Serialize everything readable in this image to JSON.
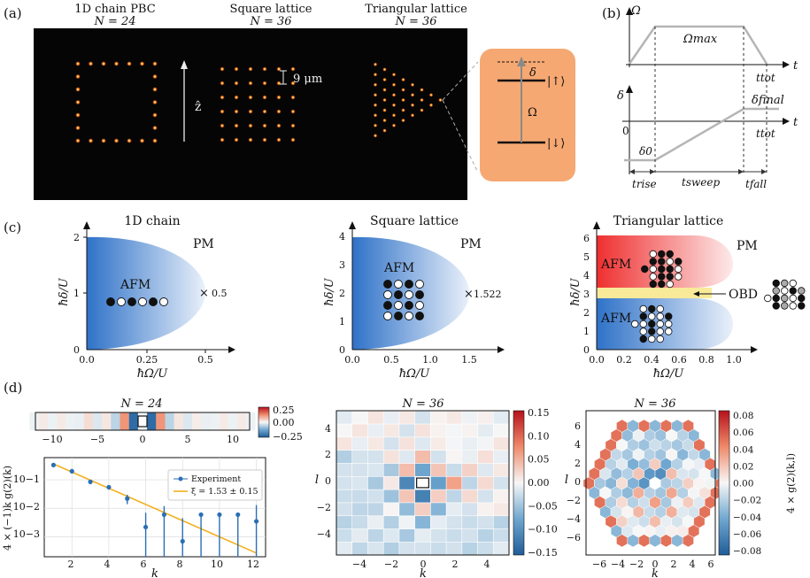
{
  "panels": {
    "a": "(a)",
    "b": "(b)",
    "c": "(c)",
    "d": "(d)"
  },
  "panel_a": {
    "chain_title": "1D chain PBC",
    "chain_n": "N = 24",
    "square_title": "Square lattice",
    "square_n": "N = 36",
    "tri_title": "Triangular lattice",
    "tri_n": "N = 36",
    "z_label": "ẑ",
    "spacing_label": "9 μm",
    "level_up": "|↑⟩",
    "level_down": "|↓⟩",
    "omega": "Ω",
    "delta": "δ",
    "box_color": "#f6a872"
  },
  "panel_b": {
    "omega_axis": "Ω",
    "delta_axis": "δ",
    "t": "t",
    "omega_max": "Ωmax",
    "t_tot": "ttot",
    "delta_final": "δfinal",
    "delta0": "δ0",
    "zero": "0",
    "t_rise": "trise",
    "t_sweep": "tsweep",
    "t_fall": "tfall"
  },
  "panel_c": {
    "chain": {
      "title": "1D chain",
      "pm": "PM",
      "afm": "AFM",
      "crit": "0.5",
      "xlabel": "ħΩ/U",
      "ylabel": "ħδ/U",
      "xticks": [
        "0.0",
        "0.25",
        "0.5"
      ],
      "yticks": [
        "0",
        "1",
        "2"
      ]
    },
    "square": {
      "title": "Square lattice",
      "pm": "PM",
      "afm": "AFM",
      "crit": "1.522",
      "xlabel": "ħΩ/U",
      "ylabel": "ħδ/U",
      "xticks": [
        "0.0",
        "0.5",
        "1.0",
        "1.5"
      ],
      "yticks": [
        "0",
        "1",
        "2",
        "3",
        "4"
      ]
    },
    "tri": {
      "title": "Triangular lattice",
      "pm": "PM",
      "afm_top": "AFM",
      "afm_bottom": "AFM",
      "obd": "OBD",
      "xlabel": "ħΩ/U",
      "ylabel": "ħδ/U",
      "xticks": [
        "0.0",
        "0.2",
        "0.4",
        "0.6",
        "0.8",
        "1.0"
      ],
      "yticks": [
        "0",
        "1",
        "2",
        "3",
        "4",
        "5",
        "6"
      ]
    }
  },
  "panel_d": {
    "chain_title": "N = 24",
    "square_title": "N = 36",
    "tri_title": "N = 36",
    "strip_ticks": [
      "−10",
      "−5",
      "0",
      "5",
      "10"
    ],
    "cb1_ticks": [
      "0.25",
      "0.00",
      "−0.25"
    ],
    "cb2_ticks": [
      "0.15",
      "0.10",
      "0.05",
      "0.00",
      "−0.05",
      "−0.10",
      "−0.15"
    ],
    "cb3_ticks": [
      "0.08",
      "0.06",
      "0.04",
      "0.02",
      "0.00",
      "−0.02",
      "−0.04",
      "−0.06",
      "−0.08"
    ],
    "cb3_label": "4 × g(2)(k,l)",
    "sq_xticks": [
      "−4",
      "−2",
      "0",
      "2",
      "4"
    ],
    "sq_yticks": [
      "4",
      "2",
      "0",
      "−2",
      "−4"
    ],
    "tri_xticks": [
      "−6",
      "−4",
      "−2",
      "0",
      "2",
      "4",
      "6"
    ],
    "tri_yticks": [
      "6",
      "4",
      "2",
      "0",
      "−2",
      "−4",
      "−6"
    ],
    "k": "k",
    "l": "l",
    "log_ylabel": "4 × (−1)k g(2)(k)",
    "log_yticks": [
      "10−1",
      "10−2",
      "10−3"
    ],
    "log_xticks": [
      "2",
      "4",
      "6",
      "8",
      "10",
      "12"
    ],
    "legend_exp": "Experiment",
    "legend_fit": "ξ = 1.53 ± 0.15"
  },
  "chart_data": {
    "type": "scatter",
    "title": "",
    "xlabel": "k",
    "ylabel": "4 × (−1)^k g(2)(k)",
    "yscale": "log",
    "xlim": [
      0.5,
      12.5
    ],
    "ylim": [
      0.0002,
      0.6
    ],
    "series": [
      {
        "name": "Experiment",
        "x": [
          1,
          2,
          3,
          4,
          5,
          6,
          7,
          8,
          9,
          10,
          11,
          12
        ],
        "y": [
          0.33,
          0.2,
          0.085,
          0.055,
          0.022,
          0.0022,
          0.006,
          0.0007,
          0.006,
          0.006,
          0.006,
          0.0035
        ],
        "yerr_low": [
          0.3,
          0.17,
          0.07,
          0.045,
          0.014,
          0.0002,
          0.0002,
          0.0002,
          0.0002,
          0.0002,
          0.0002,
          0.0002
        ],
        "yerr_high": [
          0.37,
          0.24,
          0.1,
          0.066,
          0.03,
          0.007,
          0.012,
          0.0045,
          0.0055,
          0.0055,
          0.0055,
          0.013
        ]
      },
      {
        "name": "ξ = 1.53 ± 0.15",
        "type": "line",
        "x": [
          1,
          12
        ],
        "y": [
          0.36,
          0.00027
        ]
      }
    ]
  }
}
